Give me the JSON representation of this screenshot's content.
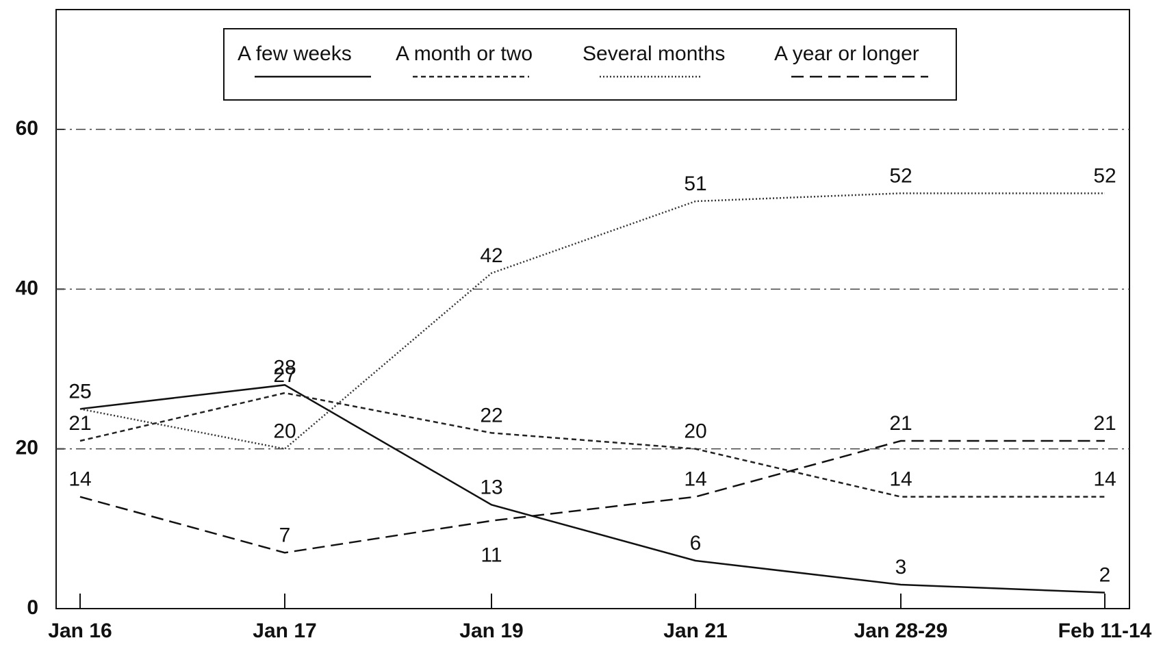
{
  "chart_data": {
    "type": "line",
    "categories": [
      "Jan 16",
      "Jan 17",
      "Jan 19",
      "Jan 21",
      "Jan 28-29",
      "Feb 11-14"
    ],
    "series": [
      {
        "name": "A few weeks",
        "color": "#111111",
        "dash": "solid",
        "values": [
          25,
          28,
          13,
          6,
          3,
          2
        ]
      },
      {
        "name": "A month or two",
        "color": "#222222",
        "dash": "short",
        "values": [
          21,
          27,
          22,
          20,
          14,
          14
        ]
      },
      {
        "name": "Several months",
        "color": "#333333",
        "dash": "dotted",
        "values": [
          25,
          20,
          42,
          51,
          52,
          52
        ]
      },
      {
        "name": "A year or longer",
        "color": "#111111",
        "dash": "long",
        "values": [
          14,
          7,
          11,
          14,
          21,
          21
        ]
      }
    ],
    "ylim": [
      0,
      75
    ],
    "yticks": [
      0,
      20,
      40,
      60
    ],
    "grid": true,
    "legend": "top"
  }
}
